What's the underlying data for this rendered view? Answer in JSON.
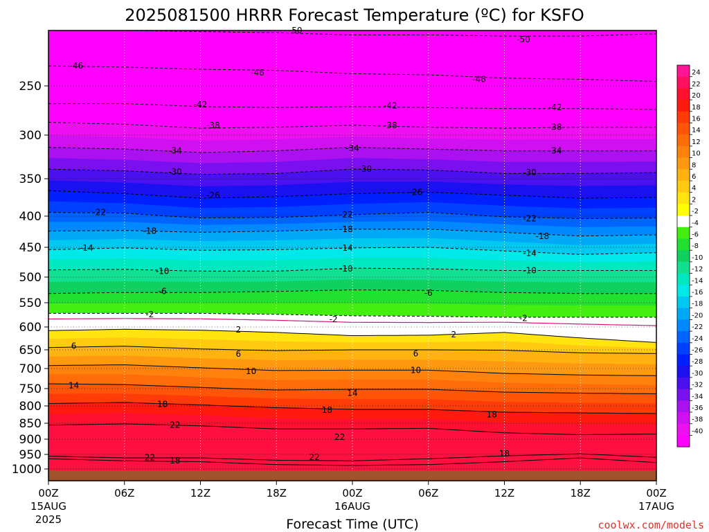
{
  "chart_data": {
    "type": "heatmap",
    "title": "2025081500 HRRR Forecast Temperature (ºC) for KSFO",
    "xlabel": "Forecast Time (UTC)",
    "ylabel": "",
    "credit": "coolwx.com/models",
    "x_ticks": [
      {
        "hours": 0,
        "line1": "00Z",
        "line2": "15AUG",
        "line3": "2025"
      },
      {
        "hours": 6,
        "line1": "06Z",
        "line2": "",
        "line3": ""
      },
      {
        "hours": 12,
        "line1": "12Z",
        "line2": "",
        "line3": ""
      },
      {
        "hours": 18,
        "line1": "18Z",
        "line2": "",
        "line3": ""
      },
      {
        "hours": 24,
        "line1": "00Z",
        "line2": "16AUG",
        "line3": ""
      },
      {
        "hours": 30,
        "line1": "06Z",
        "line2": "",
        "line3": ""
      },
      {
        "hours": 36,
        "line1": "12Z",
        "line2": "",
        "line3": ""
      },
      {
        "hours": 42,
        "line1": "18Z",
        "line2": "",
        "line3": ""
      },
      {
        "hours": 48,
        "line1": "00Z",
        "line2": "17AUG",
        "line3": ""
      }
    ],
    "x_range_hours": [
      0,
      48
    ],
    "y_axis": "pressure (hPa), inverted",
    "y_ticks": [
      250,
      300,
      350,
      400,
      450,
      500,
      550,
      600,
      650,
      700,
      750,
      800,
      850,
      900,
      950,
      1000
    ],
    "y_range_hPa": [
      200,
      1025
    ],
    "colorbar": {
      "labels": [
        24,
        22,
        20,
        18,
        16,
        14,
        12,
        10,
        8,
        6,
        4,
        2,
        -2,
        -4,
        -6,
        -8,
        -10,
        -12,
        -14,
        -16,
        -18,
        -20,
        -22,
        -24,
        -26,
        -28,
        -30,
        -32,
        -34,
        -36,
        -38,
        -40
      ],
      "colors": [
        "#ff1493",
        "#ff1060",
        "#ff0f30",
        "#ff1a10",
        "#ff3c08",
        "#ff5508",
        "#ff6c0a",
        "#ff820d",
        "#ff9910",
        "#ffb210",
        "#ffca10",
        "#ffe410",
        "#ffff00",
        "#ffffff",
        "#44ee10",
        "#22e030",
        "#10d060",
        "#10e090",
        "#00e8c0",
        "#00e8e8",
        "#00c8f0",
        "#00a8f8",
        "#0088ff",
        "#0064ff",
        "#0040ff",
        "#0020ff",
        "#1a10f0",
        "#4a10f0",
        "#7a10f0",
        "#aa10f0",
        "#d010f0",
        "#ee10f0",
        "#ff00ff"
      ]
    },
    "isotherms": [
      {
        "value": -50,
        "p": [
          200,
          200,
          201,
          202,
          204,
          204,
          205,
          205,
          203
        ]
      },
      {
        "value": -46,
        "p": [
          232,
          233,
          235,
          236,
          239,
          240,
          243,
          244,
          246
        ]
      },
      {
        "value": -42,
        "p": [
          268,
          268,
          271,
          272,
          271,
          272,
          273,
          273,
          274
        ]
      },
      {
        "value": -38,
        "p": [
          287,
          289,
          293,
          292,
          290,
          292,
          293,
          292,
          292
        ]
      },
      {
        "value": -34,
        "p": [
          314,
          316,
          320,
          318,
          314,
          316,
          318,
          318,
          318
        ]
      },
      {
        "value": -30,
        "p": [
          339,
          341,
          345,
          344,
          339,
          340,
          344,
          344,
          343
        ]
      },
      {
        "value": -26,
        "p": [
          366,
          370,
          376,
          374,
          370,
          368,
          372,
          376,
          375
        ]
      },
      {
        "value": -22,
        "p": [
          395,
          396,
          403,
          402,
          398,
          395,
          401,
          404,
          403
        ]
      },
      {
        "value": -18,
        "p": [
          424,
          423,
          426,
          424,
          421,
          421,
          426,
          432,
          430
        ]
      },
      {
        "value": -14,
        "p": [
          454,
          451,
          455,
          454,
          451,
          450,
          456,
          462,
          459
        ]
      },
      {
        "value": -10,
        "p": [
          488,
          487,
          490,
          490,
          485,
          486,
          489,
          489,
          489
        ]
      },
      {
        "value": -6,
        "p": [
          532,
          530,
          530,
          528,
          525,
          526,
          530,
          532,
          532
        ]
      },
      {
        "value": -2,
        "p": [
          572,
          572,
          572,
          574,
          577,
          578,
          580,
          580,
          580
        ]
      },
      {
        "value": 2,
        "p": [
          608,
          605,
          607,
          612,
          619,
          618,
          612,
          624,
          634
        ]
      },
      {
        "value": 6,
        "p": [
          645,
          642,
          648,
          652,
          650,
          650,
          651,
          658,
          660
        ]
      },
      {
        "value": 10,
        "p": [
          692,
          690,
          698,
          705,
          704,
          704,
          712,
          716,
          718
        ]
      },
      {
        "value": 14,
        "p": [
          738,
          740,
          747,
          754,
          752,
          752,
          760,
          763,
          765
        ]
      },
      {
        "value": 18,
        "p": [
          793,
          790,
          797,
          805,
          810,
          810,
          818,
          820,
          822
        ]
      },
      {
        "value": 22,
        "p": [
          856,
          852,
          858,
          868,
          868,
          866,
          880,
          886,
          884
        ]
      }
    ],
    "label_positions": [
      {
        "text": "-50",
        "hours": 19.5,
        "p": 200
      },
      {
        "text": "-50",
        "hours": 37.5,
        "p": 208
      },
      {
        "text": "-46",
        "hours": 2.2,
        "p": 232
      },
      {
        "text": "-46",
        "hours": 16.5,
        "p": 238
      },
      {
        "text": "-46",
        "hours": 34.0,
        "p": 244
      },
      {
        "text": "-42",
        "hours": 12.0,
        "p": 269
      },
      {
        "text": "-42",
        "hours": 27.0,
        "p": 270
      },
      {
        "text": "-42",
        "hours": 40.0,
        "p": 272
      },
      {
        "text": "-38",
        "hours": 13.0,
        "p": 290
      },
      {
        "text": "-38",
        "hours": 27.0,
        "p": 290
      },
      {
        "text": "-38",
        "hours": 40.0,
        "p": 292
      },
      {
        "text": "-34",
        "hours": 10.0,
        "p": 318
      },
      {
        "text": "-34",
        "hours": 24.0,
        "p": 315
      },
      {
        "text": "-34",
        "hours": 40.0,
        "p": 318
      },
      {
        "text": "-30",
        "hours": 10.0,
        "p": 342
      },
      {
        "text": "-30",
        "hours": 25.0,
        "p": 339
      },
      {
        "text": "-30",
        "hours": 38.0,
        "p": 343
      },
      {
        "text": "-26",
        "hours": 13.0,
        "p": 372
      },
      {
        "text": "-26",
        "hours": 29.0,
        "p": 368
      },
      {
        "text": "-22",
        "hours": 4.0,
        "p": 395
      },
      {
        "text": "-22",
        "hours": 23.5,
        "p": 398
      },
      {
        "text": "-22",
        "hours": 38.0,
        "p": 404
      },
      {
        "text": "-18",
        "hours": 8.0,
        "p": 424
      },
      {
        "text": "-18",
        "hours": 23.5,
        "p": 421
      },
      {
        "text": "-18",
        "hours": 39.0,
        "p": 432
      },
      {
        "text": "-14",
        "hours": 3.0,
        "p": 451
      },
      {
        "text": "-14",
        "hours": 23.5,
        "p": 451
      },
      {
        "text": "-14",
        "hours": 38.0,
        "p": 460
      },
      {
        "text": "-10",
        "hours": 9.0,
        "p": 490
      },
      {
        "text": "-10",
        "hours": 23.5,
        "p": 486
      },
      {
        "text": "-10",
        "hours": 38.0,
        "p": 489
      },
      {
        "text": "-6",
        "hours": 9.0,
        "p": 528
      },
      {
        "text": "-6",
        "hours": 30.0,
        "p": 531
      },
      {
        "text": "-2",
        "hours": 8.0,
        "p": 574
      },
      {
        "text": "-2",
        "hours": 22.5,
        "p": 584
      },
      {
        "text": "-2",
        "hours": 37.5,
        "p": 582
      },
      {
        "text": "2",
        "hours": 15.0,
        "p": 606
      },
      {
        "text": "2",
        "hours": 32.0,
        "p": 617
      },
      {
        "text": "6",
        "hours": 2.0,
        "p": 642
      },
      {
        "text": "6",
        "hours": 15.0,
        "p": 661
      },
      {
        "text": "6",
        "hours": 29.0,
        "p": 660
      },
      {
        "text": "10",
        "hours": 16.0,
        "p": 707
      },
      {
        "text": "10",
        "hours": 29.0,
        "p": 704
      },
      {
        "text": "14",
        "hours": 2.0,
        "p": 742
      },
      {
        "text": "14",
        "hours": 24.0,
        "p": 763
      },
      {
        "text": "18",
        "hours": 9.0,
        "p": 795
      },
      {
        "text": "18",
        "hours": 22.0,
        "p": 812
      },
      {
        "text": "18",
        "hours": 35.0,
        "p": 825
      },
      {
        "text": "18",
        "hours": 10.0,
        "p": 972
      },
      {
        "text": "18",
        "hours": 36.0,
        "p": 948
      },
      {
        "text": "22",
        "hours": 10.0,
        "p": 855
      },
      {
        "text": "22",
        "hours": 23.0,
        "p": 893
      },
      {
        "text": "22",
        "hours": 8.0,
        "p": 961
      },
      {
        "text": "22",
        "hours": 21.0,
        "p": 960
      }
    ]
  }
}
